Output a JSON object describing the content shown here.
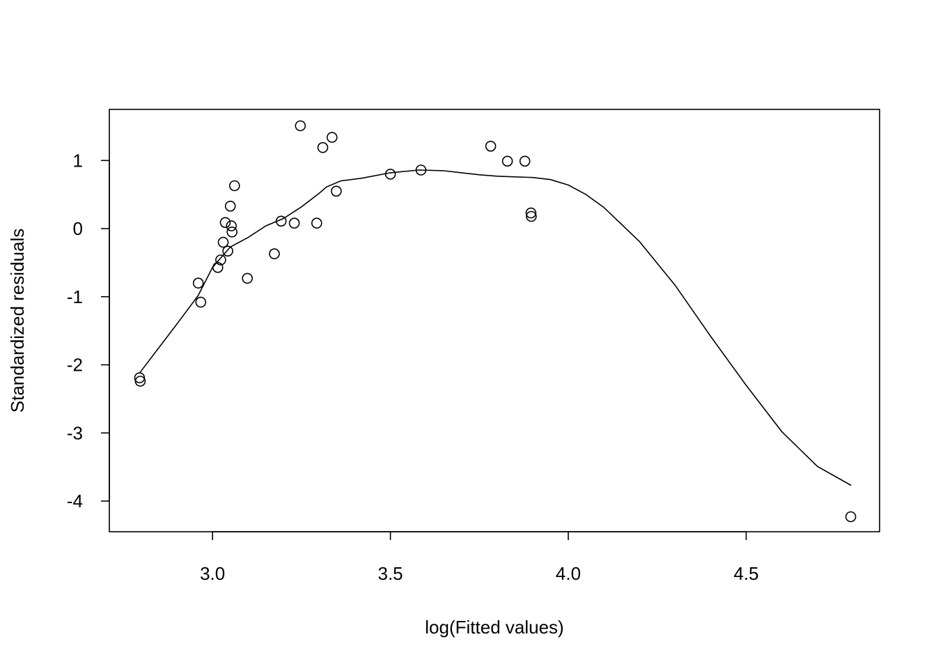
{
  "chart_data": {
    "type": "scatter",
    "title": "",
    "xlabel": "log(Fitted values)",
    "ylabel": "Standardized residuals",
    "xlim": [
      2.71,
      4.875
    ],
    "ylim": [
      -4.45,
      1.75
    ],
    "x_ticks": [
      3.0,
      3.5,
      4.0,
      4.5
    ],
    "x_tick_labels": [
      "3.0",
      "3.5",
      "4.0",
      "4.5"
    ],
    "y_ticks": [
      -4,
      -3,
      -2,
      -1,
      0,
      1
    ],
    "y_tick_labels": [
      "-4",
      "-3",
      "-2",
      "-1",
      "0",
      "1"
    ],
    "grid": false,
    "legend": "none",
    "points": {
      "x": [
        2.795,
        2.797,
        2.96,
        2.967,
        3.015,
        3.023,
        3.03,
        3.036,
        3.043,
        3.05,
        3.053,
        3.055,
        3.062,
        3.098,
        3.174,
        3.193,
        3.23,
        3.247,
        3.293,
        3.31,
        3.336,
        3.348,
        3.5,
        3.586,
        3.782,
        3.829,
        3.878,
        3.895,
        3.896,
        4.794
      ],
      "y": [
        -2.19,
        -2.24,
        -0.8,
        -1.08,
        -0.57,
        -0.46,
        -0.2,
        0.09,
        -0.33,
        0.33,
        0.04,
        -0.05,
        0.63,
        -0.73,
        -0.37,
        0.11,
        0.08,
        1.51,
        0.08,
        1.19,
        1.34,
        0.55,
        0.8,
        0.86,
        1.21,
        0.99,
        0.99,
        0.23,
        0.18,
        -4.23
      ]
    },
    "smooth_line": {
      "x": [
        2.795,
        2.9,
        2.96,
        3.0,
        3.05,
        3.1,
        3.15,
        3.2,
        3.25,
        3.3,
        3.32,
        3.36,
        3.42,
        3.5,
        3.58,
        3.65,
        3.7,
        3.75,
        3.8,
        3.85,
        3.9,
        3.95,
        4.0,
        4.05,
        4.1,
        4.2,
        4.3,
        4.4,
        4.5,
        4.6,
        4.7,
        4.795
      ],
      "y": [
        -2.12,
        -1.4,
        -0.98,
        -0.57,
        -0.27,
        -0.13,
        0.04,
        0.15,
        0.32,
        0.52,
        0.61,
        0.7,
        0.74,
        0.82,
        0.86,
        0.85,
        0.82,
        0.79,
        0.77,
        0.76,
        0.75,
        0.72,
        0.64,
        0.5,
        0.31,
        -0.19,
        -0.83,
        -1.58,
        -2.3,
        -2.98,
        -3.49,
        -3.77
      ]
    }
  }
}
